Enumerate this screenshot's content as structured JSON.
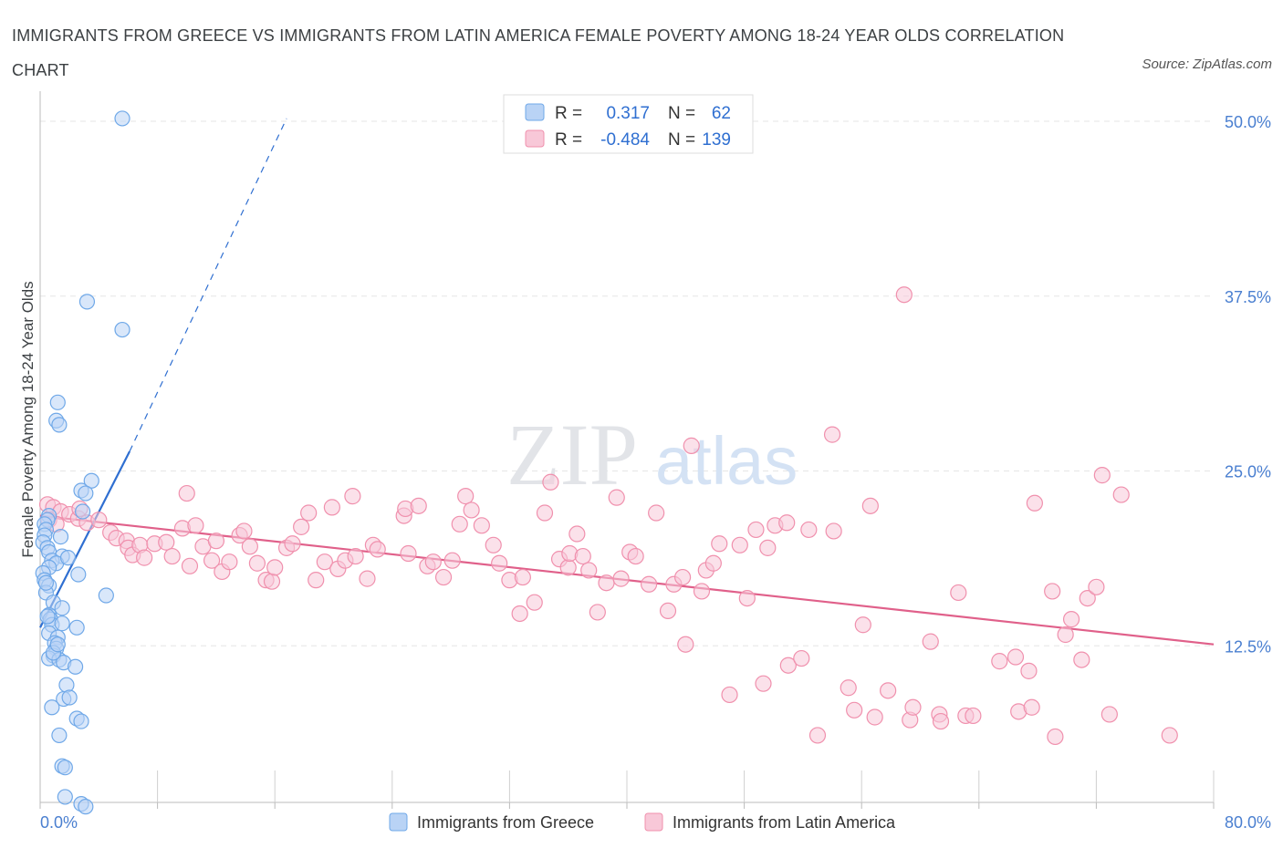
{
  "title": "IMMIGRANTS FROM GREECE VS IMMIGRANTS FROM LATIN AMERICA FEMALE POVERTY AMONG 18-24 YEAR OLDS CORRELATION CHART",
  "source": "Source: ZipAtlas.com",
  "watermark": {
    "zip": "ZIP",
    "atlas": "atlas"
  },
  "colors": {
    "greece": "#6fa8e8",
    "greece_fill": "#b9d3f5",
    "greece_line": "#2f6fd1",
    "latin": "#f090ad",
    "latin_fill": "#f8c8d8",
    "latin_line": "#e0608a",
    "tick_text": "#4a7fd0"
  },
  "legend": {
    "rows": [
      {
        "r_label": "R =",
        "r_value": "0.317",
        "n_label": "N =",
        "n_value": "62"
      },
      {
        "r_label": "R =",
        "r_value": "-0.484",
        "n_label": "N =",
        "n_value": "139"
      }
    ],
    "bottom": [
      "Immigrants from Greece",
      "Immigrants from Latin America"
    ]
  },
  "chart_data": {
    "type": "scatter",
    "ylabel": "Female Poverty Among 18-24 Year Olds",
    "xlim": [
      0,
      80
    ],
    "ylim": [
      0,
      50
    ],
    "x_tick_labels": [
      {
        "value": 0,
        "label": "0.0%"
      },
      {
        "value": 80,
        "label": "80.0%"
      }
    ],
    "y_tick_labels": [
      {
        "value": 12.5,
        "label": "12.5%"
      },
      {
        "value": 25,
        "label": "25.0%"
      },
      {
        "value": 37.5,
        "label": "37.5%"
      },
      {
        "value": 50,
        "label": "50.0%"
      }
    ],
    "series": [
      {
        "name": "Immigrants from Greece",
        "R": 0.317,
        "N": 62,
        "trend": {
          "x": [
            0,
            6.1
          ],
          "y": [
            13.8,
            26.4
          ]
        },
        "trend_extension": {
          "x": [
            6.1,
            16.8
          ],
          "y": [
            26.4,
            50.2
          ]
        },
        "points": [
          [
            5.6,
            50.2
          ],
          [
            3.2,
            37.1
          ],
          [
            5.6,
            35.1
          ],
          [
            1.2,
            29.9
          ],
          [
            1.1,
            28.6
          ],
          [
            1.3,
            28.3
          ],
          [
            3.5,
            24.3
          ],
          [
            2.8,
            23.6
          ],
          [
            3.1,
            23.4
          ],
          [
            2.9,
            22.1
          ],
          [
            0.6,
            21.8
          ],
          [
            0.5,
            21.5
          ],
          [
            0.3,
            21.2
          ],
          [
            0.4,
            20.8
          ],
          [
            0.3,
            20.4
          ],
          [
            0.2,
            19.9
          ],
          [
            0.5,
            19.5
          ],
          [
            0.6,
            19.2
          ],
          [
            1.4,
            20.3
          ],
          [
            1.5,
            18.9
          ],
          [
            0.8,
            18.6
          ],
          [
            1.1,
            18.4
          ],
          [
            0.6,
            18.1
          ],
          [
            0.2,
            17.7
          ],
          [
            2.6,
            17.6
          ],
          [
            0.3,
            17.2
          ],
          [
            0.6,
            16.8
          ],
          [
            0.4,
            16.3
          ],
          [
            4.5,
            16.1
          ],
          [
            0.9,
            15.6
          ],
          [
            1.5,
            15.2
          ],
          [
            0.6,
            14.7
          ],
          [
            0.7,
            14.4
          ],
          [
            0.8,
            14.0
          ],
          [
            1.5,
            14.1
          ],
          [
            2.5,
            13.8
          ],
          [
            0.6,
            13.4
          ],
          [
            1.2,
            13.1
          ],
          [
            1.0,
            12.7
          ],
          [
            1.1,
            12.3
          ],
          [
            0.9,
            11.8
          ],
          [
            0.6,
            11.6
          ],
          [
            1.3,
            11.5
          ],
          [
            1.6,
            11.3
          ],
          [
            2.4,
            11.0
          ],
          [
            1.8,
            9.7
          ],
          [
            1.6,
            8.7
          ],
          [
            2.0,
            8.8
          ],
          [
            0.8,
            8.1
          ],
          [
            2.5,
            7.3
          ],
          [
            2.8,
            7.1
          ],
          [
            1.3,
            6.1
          ],
          [
            1.5,
            3.9
          ],
          [
            1.7,
            3.8
          ],
          [
            1.7,
            1.7
          ],
          [
            2.8,
            1.2
          ],
          [
            3.1,
            1.0
          ],
          [
            0.5,
            14.6
          ],
          [
            0.9,
            12.0
          ],
          [
            1.2,
            12.6
          ],
          [
            0.4,
            17.0
          ],
          [
            1.9,
            18.8
          ]
        ]
      },
      {
        "name": "Immigrants from Latin America",
        "R": -0.484,
        "N": 139,
        "trend": {
          "x": [
            0,
            80
          ],
          "y": [
            21.8,
            12.6
          ]
        },
        "points": [
          [
            0.5,
            22.6
          ],
          [
            0.9,
            22.4
          ],
          [
            1.4,
            22.1
          ],
          [
            2.0,
            21.9
          ],
          [
            0.6,
            21.5
          ],
          [
            1.1,
            21.2
          ],
          [
            2.6,
            21.6
          ],
          [
            3.2,
            21.3
          ],
          [
            4.0,
            21.5
          ],
          [
            4.8,
            20.6
          ],
          [
            5.2,
            20.2
          ],
          [
            5.9,
            20.0
          ],
          [
            6.0,
            19.5
          ],
          [
            6.3,
            19.0
          ],
          [
            6.8,
            19.7
          ],
          [
            7.1,
            18.8
          ],
          [
            7.8,
            19.8
          ],
          [
            8.6,
            19.9
          ],
          [
            9.0,
            18.9
          ],
          [
            9.7,
            20.9
          ],
          [
            10.2,
            18.2
          ],
          [
            10.0,
            23.4
          ],
          [
            10.6,
            21.1
          ],
          [
            11.1,
            19.6
          ],
          [
            11.7,
            18.6
          ],
          [
            12.0,
            20.0
          ],
          [
            12.4,
            17.8
          ],
          [
            12.9,
            18.5
          ],
          [
            13.6,
            20.4
          ],
          [
            13.9,
            20.7
          ],
          [
            14.3,
            19.6
          ],
          [
            14.8,
            18.4
          ],
          [
            15.4,
            17.2
          ],
          [
            15.8,
            17.1
          ],
          [
            16.0,
            18.1
          ],
          [
            16.8,
            19.5
          ],
          [
            17.2,
            19.8
          ],
          [
            17.8,
            21.0
          ],
          [
            18.3,
            22.0
          ],
          [
            18.8,
            17.2
          ],
          [
            19.4,
            18.5
          ],
          [
            19.9,
            22.4
          ],
          [
            20.3,
            18.0
          ],
          [
            20.8,
            18.6
          ],
          [
            21.3,
            23.2
          ],
          [
            21.5,
            18.9
          ],
          [
            22.3,
            17.3
          ],
          [
            22.7,
            19.7
          ],
          [
            23.0,
            19.4
          ],
          [
            24.8,
            21.8
          ],
          [
            24.9,
            22.3
          ],
          [
            25.1,
            19.1
          ],
          [
            25.8,
            22.5
          ],
          [
            26.4,
            18.2
          ],
          [
            26.8,
            18.5
          ],
          [
            27.5,
            17.4
          ],
          [
            28.1,
            18.6
          ],
          [
            28.6,
            21.2
          ],
          [
            29.0,
            23.2
          ],
          [
            29.4,
            22.2
          ],
          [
            30.1,
            21.1
          ],
          [
            30.9,
            19.7
          ],
          [
            31.3,
            18.4
          ],
          [
            32.0,
            17.2
          ],
          [
            32.7,
            14.8
          ],
          [
            32.9,
            17.4
          ],
          [
            33.7,
            15.6
          ],
          [
            34.4,
            22.0
          ],
          [
            34.8,
            24.2
          ],
          [
            35.4,
            18.7
          ],
          [
            36.0,
            18.1
          ],
          [
            36.1,
            19.1
          ],
          [
            36.6,
            20.5
          ],
          [
            37.0,
            18.9
          ],
          [
            37.4,
            17.9
          ],
          [
            38.0,
            14.9
          ],
          [
            38.6,
            17.0
          ],
          [
            39.3,
            23.1
          ],
          [
            39.6,
            17.3
          ],
          [
            40.2,
            19.2
          ],
          [
            40.6,
            18.9
          ],
          [
            41.5,
            16.9
          ],
          [
            42.0,
            22.0
          ],
          [
            42.8,
            15.0
          ],
          [
            43.2,
            16.9
          ],
          [
            43.8,
            17.4
          ],
          [
            44.0,
            12.6
          ],
          [
            44.4,
            26.8
          ],
          [
            45.1,
            16.4
          ],
          [
            45.4,
            17.9
          ],
          [
            45.9,
            18.4
          ],
          [
            46.3,
            19.8
          ],
          [
            47.0,
            9.0
          ],
          [
            47.7,
            19.7
          ],
          [
            48.2,
            15.9
          ],
          [
            48.8,
            20.8
          ],
          [
            49.3,
            9.8
          ],
          [
            49.6,
            19.5
          ],
          [
            50.1,
            21.1
          ],
          [
            50.9,
            21.3
          ],
          [
            51.0,
            11.1
          ],
          [
            51.9,
            11.6
          ],
          [
            52.4,
            20.8
          ],
          [
            53.0,
            6.1
          ],
          [
            54.0,
            27.6
          ],
          [
            54.1,
            20.7
          ],
          [
            55.1,
            9.5
          ],
          [
            55.5,
            7.9
          ],
          [
            56.1,
            14.0
          ],
          [
            56.6,
            22.5
          ],
          [
            56.9,
            7.4
          ],
          [
            57.8,
            9.3
          ],
          [
            58.9,
            37.6
          ],
          [
            59.3,
            7.2
          ],
          [
            59.5,
            8.1
          ],
          [
            60.7,
            12.8
          ],
          [
            61.3,
            7.6
          ],
          [
            61.4,
            7.1
          ],
          [
            62.6,
            16.3
          ],
          [
            63.1,
            7.5
          ],
          [
            63.6,
            7.5
          ],
          [
            65.4,
            11.4
          ],
          [
            66.5,
            11.7
          ],
          [
            66.7,
            7.8
          ],
          [
            67.4,
            10.7
          ],
          [
            67.6,
            8.1
          ],
          [
            67.8,
            22.7
          ],
          [
            69.0,
            16.4
          ],
          [
            69.2,
            6.0
          ],
          [
            69.9,
            13.3
          ],
          [
            70.3,
            14.4
          ],
          [
            71.0,
            11.5
          ],
          [
            71.4,
            15.9
          ],
          [
            72.0,
            16.7
          ],
          [
            72.4,
            24.7
          ],
          [
            72.9,
            7.6
          ],
          [
            73.7,
            23.3
          ],
          [
            77.0,
            6.1
          ],
          [
            2.7,
            22.3
          ]
        ]
      }
    ]
  }
}
